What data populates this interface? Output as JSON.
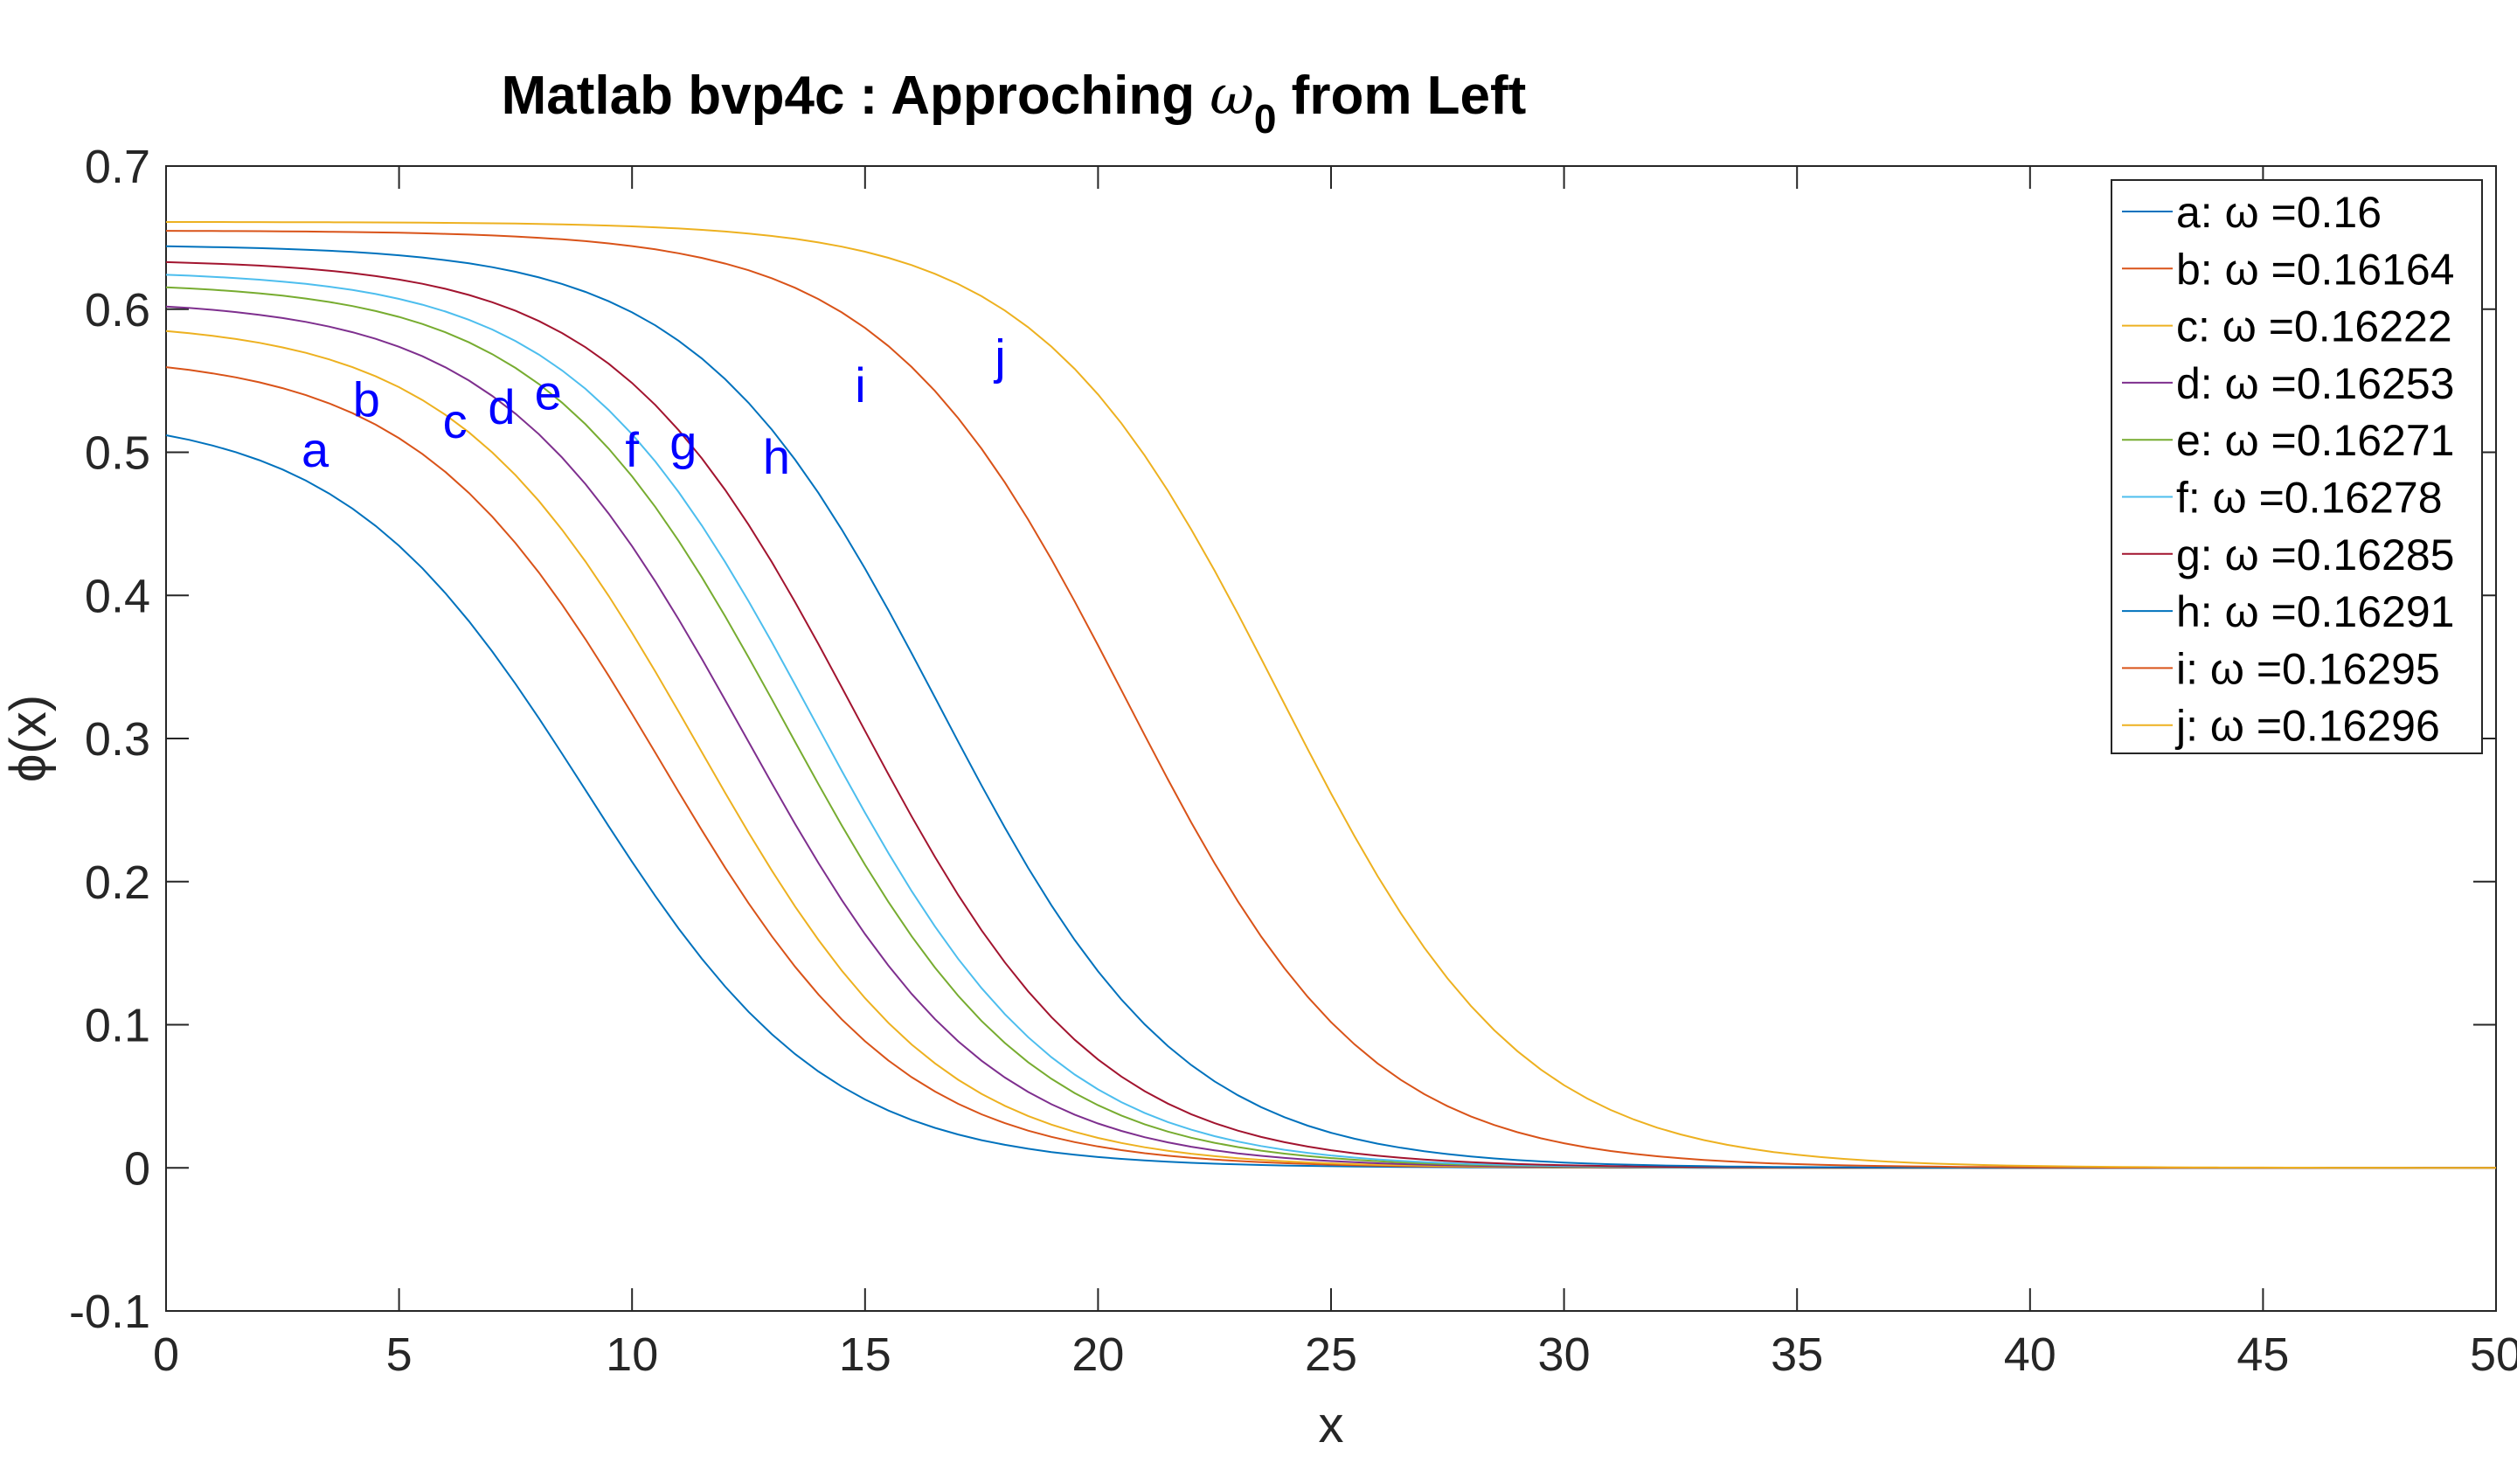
{
  "chart_data": {
    "type": "line",
    "title": "Matlab bvp4c : Approching ω0 from Left",
    "title_parts": {
      "prefix": "Matlab bvp4c : Approching ",
      "symbol": "ω",
      "subscript": "0",
      "suffix": " from Left"
    },
    "xlabel": "x",
    "ylabel": "ϕ(x)",
    "xlim": [
      0,
      50
    ],
    "ylim": [
      -0.1,
      0.7
    ],
    "x_ticks": [
      "0",
      "5",
      "10",
      "15",
      "20",
      "25",
      "30",
      "35",
      "40",
      "45",
      "50"
    ],
    "y_ticks": [
      "-0.1",
      "0",
      "0.1",
      "0.2",
      "0.3",
      "0.4",
      "0.5",
      "0.6",
      "0.7"
    ],
    "grid": false,
    "legend_position": "top-right",
    "series": [
      {
        "name": "a: ω =0.16",
        "label": "a",
        "omega": 0.16,
        "color": "#0072BD",
        "y0": 0.528,
        "x_half": 9.0,
        "width": 2.6,
        "label_x": 3.2,
        "label_y": 0.49
      },
      {
        "name": "b: ω =0.16164",
        "label": "b",
        "omega": 0.16164,
        "color": "#D95319",
        "y0": 0.569,
        "x_half": 10.6,
        "width": 2.6,
        "label_x": 4.3,
        "label_y": 0.525
      },
      {
        "name": "c: ω =0.16222",
        "label": "c",
        "omega": 0.16222,
        "color": "#EDB120",
        "y0": 0.592,
        "x_half": 11.4,
        "width": 2.6,
        "label_x": 6.2,
        "label_y": 0.51
      },
      {
        "name": "d: ω =0.16253",
        "label": "d",
        "omega": 0.16253,
        "color": "#7E2F8E",
        "y0": 0.607,
        "x_half": 12.4,
        "width": 2.6,
        "label_x": 7.2,
        "label_y": 0.52
      },
      {
        "name": "e: ω =0.16271",
        "label": "e",
        "omega": 0.16271,
        "color": "#77AC30",
        "y0": 0.619,
        "x_half": 13.3,
        "width": 2.6,
        "label_x": 8.2,
        "label_y": 0.53
      },
      {
        "name": "f: ω =0.16278",
        "label": "f",
        "omega": 0.16278,
        "color": "#4DBEEE",
        "y0": 0.627,
        "x_half": 13.9,
        "width": 2.6,
        "label_x": 10.0,
        "label_y": 0.49
      },
      {
        "name": "g: ω =0.16285",
        "label": "g",
        "omega": 0.16285,
        "color": "#A2142F",
        "y0": 0.635,
        "x_half": 14.8,
        "width": 2.6,
        "label_x": 11.1,
        "label_y": 0.495
      },
      {
        "name": "h: ω =0.16291",
        "label": "h",
        "omega": 0.16291,
        "color": "#0072BD",
        "y0": 0.645,
        "x_half": 16.6,
        "width": 2.6,
        "label_x": 13.1,
        "label_y": 0.485
      },
      {
        "name": "i: ω =0.16295",
        "label": "i",
        "omega": 0.16295,
        "color": "#D95319",
        "y0": 0.655,
        "x_half": 20.6,
        "width": 2.6,
        "label_x": 14.9,
        "label_y": 0.535
      },
      {
        "name": "j: ω =0.16296",
        "label": "j",
        "omega": 0.16296,
        "color": "#EDB120",
        "y0": 0.661,
        "x_half": 23.9,
        "width": 2.6,
        "label_x": 17.9,
        "label_y": 0.555
      }
    ]
  }
}
